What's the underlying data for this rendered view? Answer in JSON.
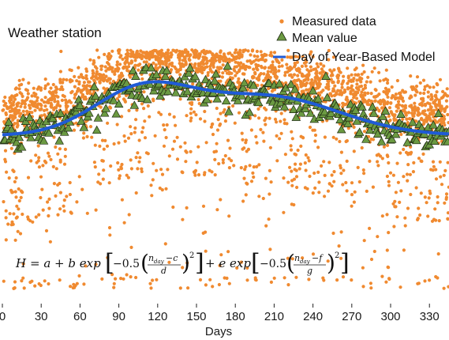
{
  "chart_data": {
    "type": "scatter",
    "title": "",
    "annotation": "Weather station",
    "xlabel": "Days",
    "ylabel": "",
    "xlim": [
      0,
      345
    ],
    "ylim": [
      0,
      10
    ],
    "xticks": [
      "0",
      "30",
      "60",
      "90",
      "120",
      "150",
      "180",
      "210",
      "240",
      "270",
      "300",
      "330"
    ],
    "xtick_values": [
      0,
      30,
      60,
      90,
      120,
      150,
      180,
      210,
      240,
      270,
      300,
      330
    ],
    "legend_position": "top-right",
    "series": [
      {
        "name": "Measured data",
        "kind": "scatter",
        "marker": "dot",
        "color": "#F08A30",
        "model": "day-of-year bimodal curve with wide downward-skewed spread",
        "count": 2600
      },
      {
        "name": "Mean value",
        "kind": "scatter",
        "marker": "triangle",
        "color": "#6B9A42",
        "model": "daily mean close to the fitted curve",
        "count": 345
      },
      {
        "name": "Day of Year-Based Model",
        "kind": "line",
        "color": "#1F5BD6",
        "params": {
          "a": 6.3,
          "b": 1.7,
          "c": 108,
          "d": 38,
          "e": 1.5,
          "f": 205,
          "g": 55
        }
      }
    ],
    "equation": {
      "lhs": "H",
      "parts": [
        "= a + b exp",
        "−0.5",
        "n",
        "day",
        "−c",
        "d",
        "2",
        "+ e exp",
        "−0.5",
        "n",
        "day",
        "−f",
        "g",
        "2"
      ]
    }
  }
}
